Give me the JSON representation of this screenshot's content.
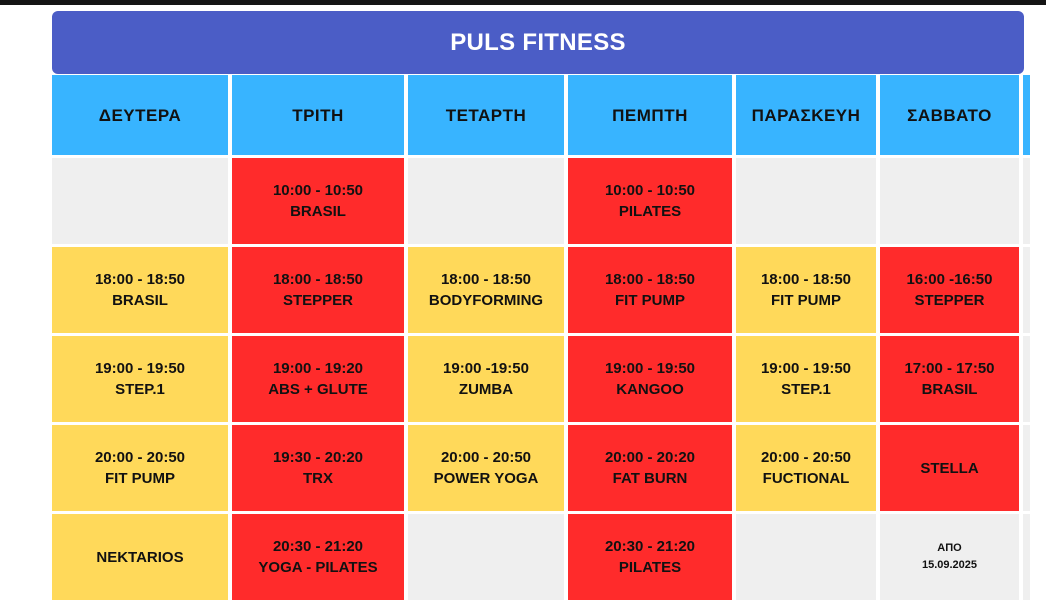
{
  "title": "PULS FITNESS",
  "days": [
    "ΔΕΥΤΕΡΑ",
    "ΤΡΙΤΗ",
    "ΤΕΤΑΡΤΗ",
    "ΠΕΜΠΤΗ",
    "ΠΑΡΑΣΚΕΥΗ",
    "ΣΑΒΒΑΤΟ"
  ],
  "colors": {
    "title_bar": "#4b5dc6",
    "header": "#38b4ff",
    "red": "#ff2b2b",
    "yellow": "#ffd95a",
    "empty": "#efefef"
  },
  "rows": [
    [
      {
        "color": "empty"
      },
      {
        "color": "red",
        "time": "10:00 - 10:50",
        "class": "BRASIL"
      },
      {
        "color": "empty"
      },
      {
        "color": "red",
        "time": "10:00 - 10:50",
        "class": "PILATES"
      },
      {
        "color": "empty"
      },
      {
        "color": "empty"
      }
    ],
    [
      {
        "color": "yellow",
        "time": "18:00 - 18:50",
        "class": "BRASIL"
      },
      {
        "color": "red",
        "time": "18:00 - 18:50",
        "class": "STEPPER"
      },
      {
        "color": "yellow",
        "time": "18:00 - 18:50",
        "class": "BODYFORMING"
      },
      {
        "color": "red",
        "time": "18:00 - 18:50",
        "class": "FIT PUMP"
      },
      {
        "color": "yellow",
        "time": "18:00 - 18:50",
        "class": "FIT PUMP"
      },
      {
        "color": "red",
        "time": "16:00 -16:50",
        "class": "STEPPER"
      }
    ],
    [
      {
        "color": "yellow",
        "time": "19:00 - 19:50",
        "class": "STEP.1"
      },
      {
        "color": "red",
        "time": "19:00 - 19:20",
        "class": "ABS + GLUTE"
      },
      {
        "color": "yellow",
        "time": "19:00 -19:50",
        "class": "ZUMBA"
      },
      {
        "color": "red",
        "time": "19:00 - 19:50",
        "class": "KANGOO"
      },
      {
        "color": "yellow",
        "time": "19:00 - 19:50",
        "class": "STEP.1"
      },
      {
        "color": "red",
        "time": "17:00 - 17:50",
        "class": "BRASIL"
      }
    ],
    [
      {
        "color": "yellow",
        "time": "20:00 - 20:50",
        "class": "FIT PUMP"
      },
      {
        "color": "red",
        "time": "19:30 - 20:20",
        "class": "TRX"
      },
      {
        "color": "yellow",
        "time": "20:00 - 20:50",
        "class": "POWER YOGA"
      },
      {
        "color": "red",
        "time": "20:00 - 20:20",
        "class": "FAT  BURN"
      },
      {
        "color": "yellow",
        "time": "20:00 - 20:50",
        "class": "FUCTIONAL"
      },
      {
        "color": "red",
        "time": "STELLA"
      }
    ],
    [
      {
        "color": "yellow",
        "time": "NEKTARIOS"
      },
      {
        "color": "red",
        "time": "20:30 - 21:20",
        "class": "YOGA - PILATES"
      },
      {
        "color": "empty"
      },
      {
        "color": "red",
        "time": "20:30 - 21:20",
        "class": "PILATES"
      },
      {
        "color": "empty"
      },
      {
        "color": "empty",
        "small": true,
        "time": "ΑΠΟ",
        "class": "15.09.2025"
      }
    ]
  ]
}
